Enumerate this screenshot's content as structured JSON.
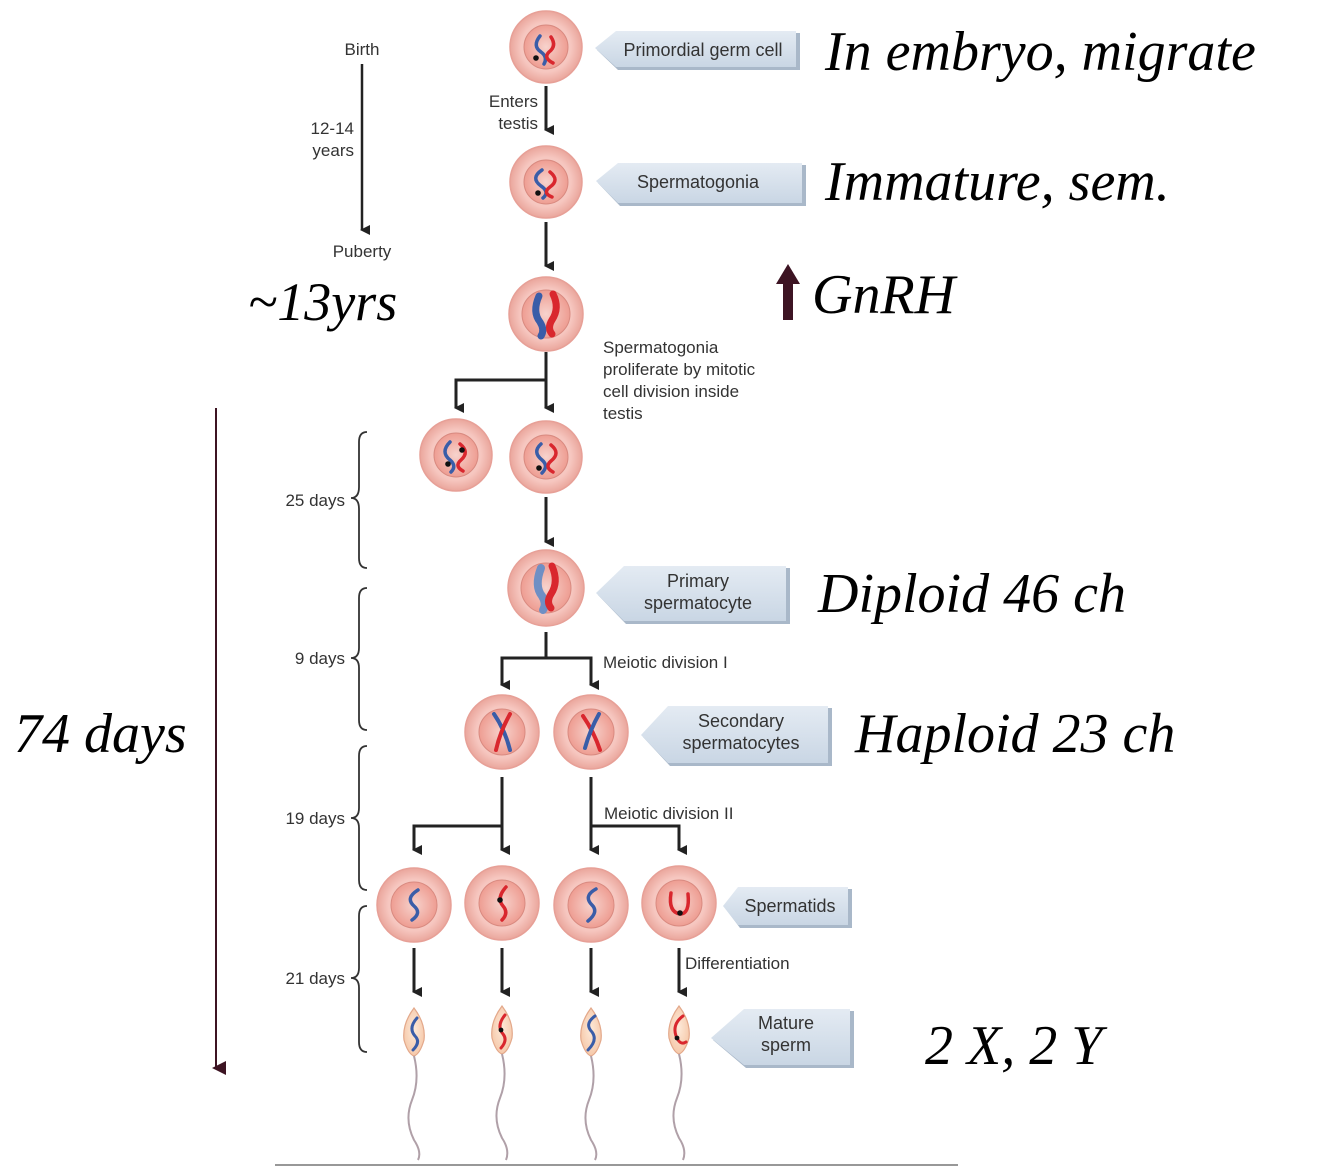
{
  "timeline": {
    "birth": "Birth",
    "years_line1": "12-14",
    "years_line2": "years",
    "puberty": "Puberty"
  },
  "enters_testis": {
    "line1": "Enters",
    "line2": "testis"
  },
  "proliferation_note": {
    "line1": "Spermatogonia",
    "line2": "proliferate by mitotic",
    "line3": "cell division inside",
    "line4": "testis"
  },
  "labels": {
    "primordial": "Primordial germ cell",
    "spermatogonia": "Spermatogonia",
    "primary_line1": "Primary",
    "primary_line2": "spermatocyte",
    "secondary_line1": "Secondary",
    "secondary_line2": "spermatocytes",
    "spermatids": "Spermatids",
    "mature_line1": "Mature",
    "mature_line2": "sperm"
  },
  "steps": {
    "meiotic1": "Meiotic division I",
    "meiotic2": "Meiotic division II",
    "differentiation": "Differentiation"
  },
  "durations": {
    "d25": "25 days",
    "d9": "9 days",
    "d19": "19 days",
    "d21": "21 days"
  },
  "annotations": {
    "embryo": "In embryo, migrate",
    "immature": "Immature, sem.",
    "gnrh": "GnRH",
    "age": "~13yrs",
    "diploid": "Diploid 46 ch",
    "haploid": "Haploid 23 ch",
    "total_days": "74 days",
    "chromosomes": "2 X, 2 Y"
  },
  "colors": {
    "cell_fill": "#f6c6bf",
    "cell_border": "#e7a097",
    "chromosome_red": "#d9272e",
    "chromosome_blue": "#3a5da8",
    "label_box": "#d9e3ee",
    "annotation_arrow": "#3d1423"
  }
}
